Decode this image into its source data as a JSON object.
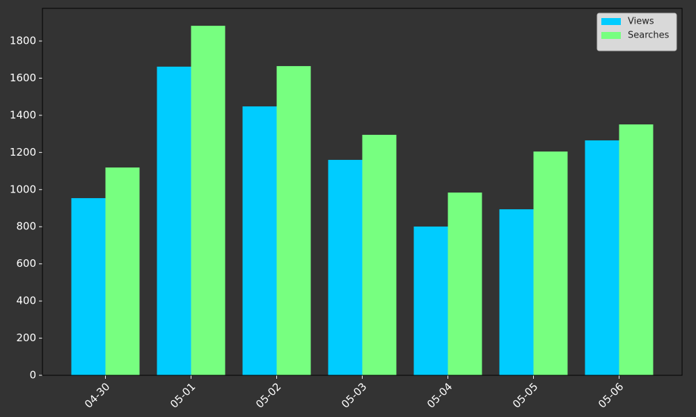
{
  "chart_data": {
    "type": "bar",
    "categories": [
      "04-30",
      "05-01",
      "05-02",
      "05-03",
      "05-04",
      "05-05",
      "05-06"
    ],
    "series": [
      {
        "name": "Views",
        "color": "#00ccff",
        "values": [
          954,
          1662,
          1448,
          1160,
          801,
          894,
          1265
        ]
      },
      {
        "name": "Searches",
        "color": "#77ff80",
        "values": [
          1119,
          1882,
          1665,
          1295,
          984,
          1205,
          1351
        ]
      }
    ],
    "ylim": [
      0,
      1976
    ],
    "yticks": [
      0,
      200,
      400,
      600,
      800,
      1000,
      1200,
      1400,
      1600,
      1800
    ],
    "legend": "upper right"
  }
}
